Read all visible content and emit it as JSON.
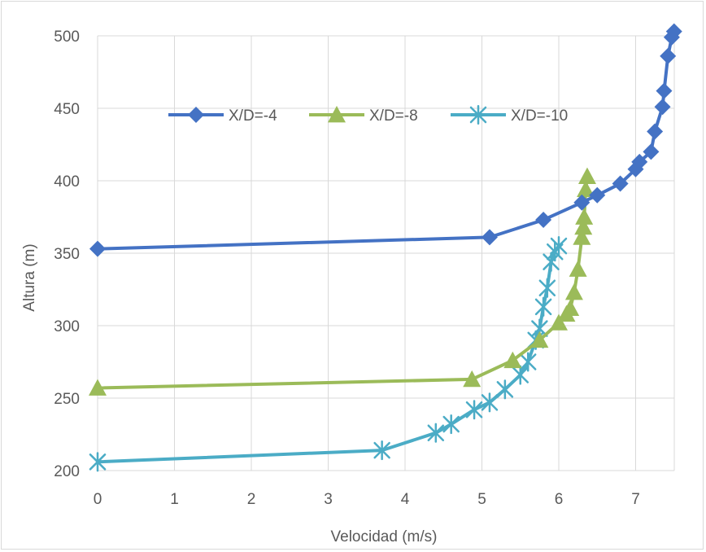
{
  "chart_data": {
    "type": "scatter",
    "title": "",
    "xlabel": "Velocidad (m/s)",
    "ylabel": "Altura (m)",
    "xlim": [
      0,
      7.5
    ],
    "ylim": [
      200,
      500
    ],
    "x_ticks": [
      "0",
      "1",
      "2",
      "3",
      "4",
      "5",
      "6",
      "7"
    ],
    "y_ticks": [
      "200",
      "250",
      "300",
      "350",
      "400",
      "450",
      "500"
    ],
    "grid": true,
    "legend_position": "top-center",
    "series": [
      {
        "name": "X/D=-4",
        "color": "#4472c4",
        "marker": "diamond",
        "points": [
          [
            0.0,
            353
          ],
          [
            5.1,
            361
          ],
          [
            5.8,
            373
          ],
          [
            6.3,
            385
          ],
          [
            6.5,
            390
          ],
          [
            6.8,
            398
          ],
          [
            7.0,
            408
          ],
          [
            7.05,
            413
          ],
          [
            7.2,
            420
          ],
          [
            7.25,
            434
          ],
          [
            7.35,
            451
          ],
          [
            7.37,
            462
          ],
          [
            7.42,
            486
          ],
          [
            7.47,
            499
          ],
          [
            7.5,
            503
          ]
        ]
      },
      {
        "name": "X/D=-8",
        "color": "#9bbb59",
        "marker": "triangle",
        "points": [
          [
            0.0,
            257
          ],
          [
            4.87,
            263
          ],
          [
            5.4,
            276
          ],
          [
            5.75,
            290
          ],
          [
            6.0,
            302
          ],
          [
            6.1,
            308
          ],
          [
            6.15,
            312
          ],
          [
            6.2,
            323
          ],
          [
            6.25,
            339
          ],
          [
            6.3,
            361
          ],
          [
            6.32,
            368
          ],
          [
            6.33,
            375
          ],
          [
            6.35,
            394
          ],
          [
            6.37,
            403
          ]
        ]
      },
      {
        "name": "X/D=-10",
        "color": "#4bacc6",
        "marker": "asterisk",
        "points": [
          [
            0.0,
            206
          ],
          [
            3.7,
            214
          ],
          [
            4.4,
            226
          ],
          [
            4.6,
            232
          ],
          [
            4.9,
            242
          ],
          [
            5.1,
            247
          ],
          [
            5.3,
            256
          ],
          [
            5.5,
            266
          ],
          [
            5.6,
            275
          ],
          [
            5.7,
            290
          ],
          [
            5.75,
            298
          ],
          [
            5.8,
            313
          ],
          [
            5.85,
            326
          ],
          [
            5.9,
            344
          ],
          [
            5.95,
            351
          ],
          [
            6.0,
            355
          ]
        ]
      }
    ]
  }
}
